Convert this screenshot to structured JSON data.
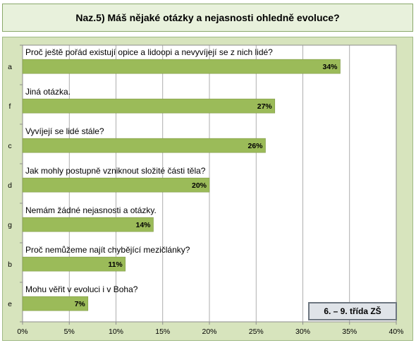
{
  "title": "Naz.5) Máš nějaké otázky a nejasnosti ohledně evoluce?",
  "badge": "6. – 9. třída ZŠ",
  "chart_data": {
    "type": "bar",
    "orientation": "horizontal",
    "categories": [
      "a",
      "f",
      "c",
      "d",
      "g",
      "b",
      "e"
    ],
    "questions": [
      "Proč ještě pořád existují opice a lidoopi a nevyvíjejí se z nich lidé?",
      "Jiná otázka.",
      "Vyvíjejí se lidé stále?",
      "Jak mohly postupně vzniknout složité části těla?",
      "Nemám žádné nejasnosti a otázky.",
      "Proč nemůžeme najít chybějící mezičlánky?",
      "Mohu věřit v evoluci i v Boha?"
    ],
    "values": [
      34,
      27,
      26,
      20,
      14,
      11,
      7
    ],
    "value_labels": [
      "34%",
      "27%",
      "26%",
      "20%",
      "14%",
      "11%",
      "7%"
    ],
    "xlim": [
      0,
      40
    ],
    "x_ticks": [
      "0%",
      "5%",
      "10%",
      "15%",
      "20%",
      "25%",
      "30%",
      "35%",
      "40%"
    ],
    "bar_color": "#9bbb59",
    "grid": true,
    "legend": "none"
  }
}
